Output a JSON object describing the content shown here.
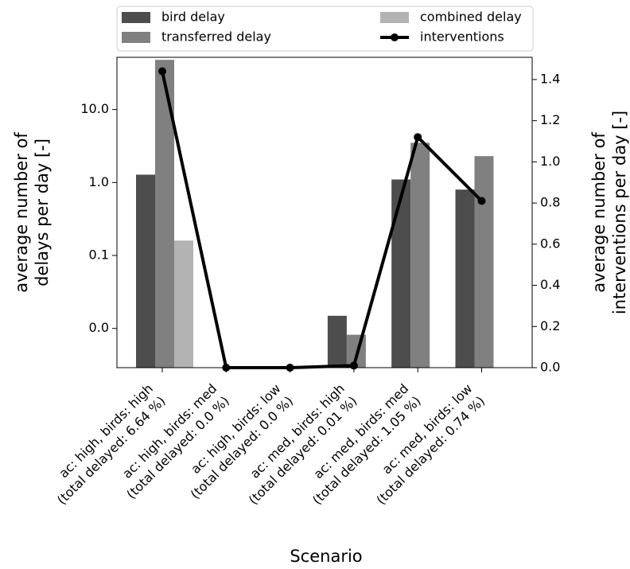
{
  "chart_data": {
    "type": "bar",
    "xlabel": "Scenario",
    "ylabel": [
      "average number of",
      "delays per day [-]"
    ],
    "y2label": [
      "average number of",
      "interventions per day [-]"
    ],
    "categories": [
      [
        "ac: high, birds: high",
        "(total delayed: 6.64 %)"
      ],
      [
        "ac: high, birds: med",
        "(total delayed: 0.0 %)"
      ],
      [
        "ac: high, birds: low",
        "(total delayed: 0.0 %)"
      ],
      [
        "ac: med, birds: high",
        "(total delayed: 0.01 %)"
      ],
      [
        "ac: med, birds: med",
        "(total delayed: 1.05 %)"
      ],
      [
        "ac: med, birds: low",
        "(total delayed: 0.74 %)"
      ]
    ],
    "series": [
      {
        "name": "bird delay",
        "color": "#4d4d4d",
        "values": [
          1.28,
          null,
          null,
          0.0149,
          1.1,
          0.8
        ]
      },
      {
        "name": "transferred delay",
        "color": "#808080",
        "values": [
          48,
          null,
          null,
          0.0082,
          3.5,
          2.3
        ]
      },
      {
        "name": "combined delay",
        "color": "#b3b3b3",
        "values": [
          0.16,
          null,
          null,
          null,
          null,
          null
        ]
      },
      {
        "name": "interventions",
        "color": "#000000",
        "type": "line",
        "axis": "y2",
        "values": [
          1.44,
          0,
          0,
          0.01,
          1.12,
          0.81
        ]
      }
    ],
    "ylog": true,
    "ylim": [
      0.0029,
      52
    ],
    "yticks": [
      {
        "value": 0.01,
        "label": "0.0"
      },
      {
        "value": 0.1,
        "label": "0.1"
      },
      {
        "value": 1,
        "label": "1.0"
      },
      {
        "value": 10,
        "label": "10.0"
      }
    ],
    "y2lim": [
      0,
      1.508
    ],
    "y2ticks": [
      {
        "value": 0,
        "label": "0.0"
      },
      {
        "value": 0.2,
        "label": "0.2"
      },
      {
        "value": 0.4,
        "label": "0.4"
      },
      {
        "value": 0.6,
        "label": "0.6"
      },
      {
        "value": 0.8,
        "label": "0.8"
      },
      {
        "value": 1.0,
        "label": "1.0"
      },
      {
        "value": 1.2,
        "label": "1.2"
      },
      {
        "value": 1.4,
        "label": "1.4"
      }
    ],
    "legend": "top"
  }
}
